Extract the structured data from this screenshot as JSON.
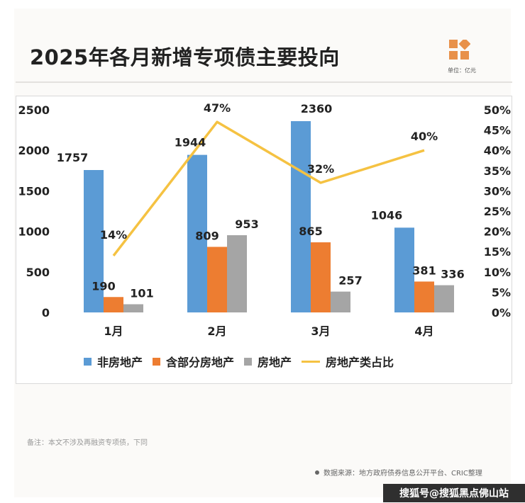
{
  "header": {
    "title": "2025年各月新增专项债主要投向",
    "unit": "单位：亿元"
  },
  "footer": {
    "note": "备注：本文不涉及再融资专项债，下同",
    "source": "数据来源：地方政府债券信息公开平台、CRIC整理",
    "watermark": "搜狐号@搜狐黑点佛山站"
  },
  "colors": {
    "non_real_estate": "#5b9bd5",
    "partial_real_estate": "#ed7d31",
    "real_estate": "#a5a5a5",
    "ratio_line": "#f5c242"
  },
  "chart_data": {
    "type": "bar",
    "categories": [
      "1月",
      "2月",
      "3月",
      "4月"
    ],
    "series": [
      {
        "name": "非房地产",
        "values": [
          1757,
          1944,
          2360,
          1046
        ]
      },
      {
        "name": "含部分房地产",
        "values": [
          190,
          809,
          865,
          381
        ]
      },
      {
        "name": "房地产",
        "values": [
          101,
          953,
          257,
          336
        ]
      }
    ],
    "line_series": {
      "name": "房地产类占比",
      "values": [
        14,
        47,
        32,
        40
      ],
      "axis": "right",
      "unit": "%"
    },
    "ylim": [
      0,
      2500
    ],
    "yticks": [
      "0",
      "500",
      "1000",
      "1500",
      "2000",
      "2500"
    ],
    "y2lim": [
      0,
      50
    ],
    "y2ticks": [
      "0%",
      "5%",
      "10%",
      "15%",
      "20%",
      "25%",
      "30%",
      "35%",
      "40%",
      "45%",
      "50%"
    ],
    "grid": false,
    "legend_position": "bottom"
  }
}
